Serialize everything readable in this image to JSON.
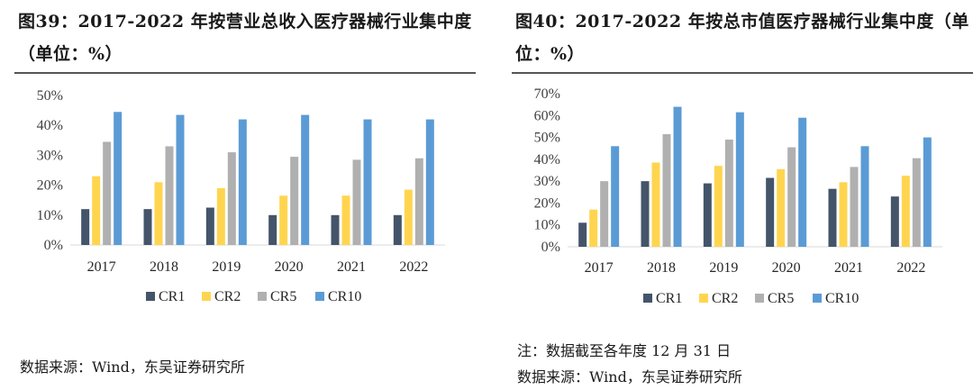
{
  "colors": {
    "CR1": "#44546A",
    "CR2": "#FFD54F",
    "CR5": "#B0B0B0",
    "CR10": "#5B9BD5"
  },
  "left_panel": {
    "title": "图39：2017-2022 年按营业总收入医疗器械行业集中度（单位：%）",
    "source": "数据来源：Wind，东吴证券研究所"
  },
  "right_panel": {
    "title": "图40：2017-2022 年按总市值医疗器械行业集中度（单位：%）",
    "note": "注：数据截至各年度 12 月 31 日",
    "source": "数据来源：Wind，东吴证券研究所"
  },
  "chart_data": [
    {
      "type": "bar",
      "categories": [
        "2017",
        "2018",
        "2019",
        "2020",
        "2021",
        "2022"
      ],
      "series": [
        {
          "name": "CR1",
          "values": [
            12,
            12,
            12.5,
            10,
            10,
            10
          ]
        },
        {
          "name": "CR2",
          "values": [
            23,
            21,
            19,
            16.5,
            16.5,
            18.5
          ]
        },
        {
          "name": "CR5",
          "values": [
            34.5,
            33,
            31,
            29.5,
            28.5,
            29
          ]
        },
        {
          "name": "CR10",
          "values": [
            44.5,
            43.5,
            42,
            43.5,
            42,
            42
          ]
        }
      ],
      "ylim": [
        0,
        50
      ],
      "yticks": [
        "0%",
        "10%",
        "20%",
        "30%",
        "40%",
        "50%"
      ],
      "grid": false,
      "legend": "bottom"
    },
    {
      "type": "bar",
      "categories": [
        "2017",
        "2018",
        "2019",
        "2020",
        "2021",
        "2022"
      ],
      "series": [
        {
          "name": "CR1",
          "values": [
            11,
            30,
            29,
            31.5,
            26.5,
            23
          ]
        },
        {
          "name": "CR2",
          "values": [
            17,
            38.5,
            37,
            35.5,
            29.5,
            32.5
          ]
        },
        {
          "name": "CR5",
          "values": [
            30,
            51.5,
            49,
            45.5,
            36.5,
            40.5
          ]
        },
        {
          "name": "CR10",
          "values": [
            46,
            64,
            61.5,
            59,
            46,
            50
          ]
        }
      ],
      "ylim": [
        0,
        70
      ],
      "yticks": [
        "0%",
        "10%",
        "20%",
        "30%",
        "40%",
        "50%",
        "60%",
        "70%"
      ],
      "grid": false,
      "legend": "bottom"
    }
  ]
}
